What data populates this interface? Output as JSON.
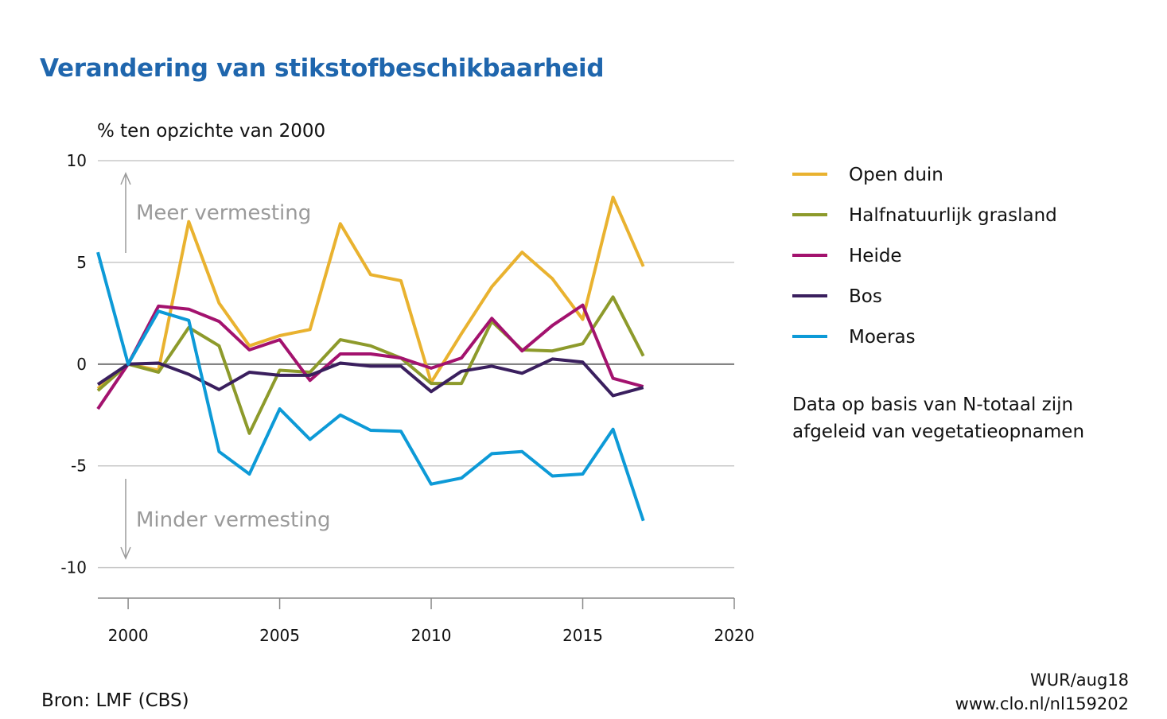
{
  "title": "Verandering van stikstofbeschikbaarheid",
  "source": "Bron: LMF (CBS)",
  "credit": {
    "line1": "WUR/aug18",
    "line2": "www.clo.nl/nl159202"
  },
  "note": {
    "line1": "Data op basis van N-totaal zijn",
    "line2": "afgeleid van vegetatieopnamen"
  },
  "chart_data": {
    "type": "line",
    "title": "Verandering van stikstofbeschikbaarheid",
    "ylabel": "% ten opzichte van 2000",
    "xlabel": "",
    "xlim": [
      1999,
      2020
    ],
    "ylim": [
      -11.5,
      10
    ],
    "yticks": [
      10,
      5,
      0,
      -5,
      -10
    ],
    "ytick_labels": [
      "10",
      "5",
      "0",
      "-5",
      "-10"
    ],
    "xticks": [
      2000,
      2005,
      2010,
      2015,
      2020
    ],
    "xtick_labels": [
      "2000",
      "2005",
      "2010",
      "2015",
      "2020"
    ],
    "grid": true,
    "legend_position": "right",
    "annotations": [
      {
        "text": "Meer vermesting",
        "direction": "up"
      },
      {
        "text": "Minder vermesting",
        "direction": "down"
      }
    ],
    "x": [
      1999,
      2000,
      2001,
      2002,
      2003,
      2004,
      2005,
      2006,
      2007,
      2008,
      2009,
      2010,
      2011,
      2012,
      2013,
      2014,
      2015,
      2016,
      2017
    ],
    "series": [
      {
        "name": "Open duin",
        "color": "#e9b22f",
        "values": [
          -1.2,
          0,
          -0.3,
          7.0,
          3.0,
          0.9,
          1.4,
          1.7,
          6.9,
          4.4,
          4.1,
          -0.9,
          1.5,
          3.8,
          5.5,
          4.2,
          2.2,
          8.2,
          4.8
        ]
      },
      {
        "name": "Halfnatuurlijk grasland",
        "color": "#8d9a2b",
        "values": [
          -1.3,
          0,
          -0.4,
          1.8,
          0.9,
          -3.4,
          -0.3,
          -0.4,
          1.2,
          0.9,
          0.3,
          -0.95,
          -0.95,
          2.1,
          0.7,
          0.65,
          1.0,
          3.3,
          0.4
        ]
      },
      {
        "name": "Heide",
        "color": "#a3126e",
        "values": [
          -2.2,
          0,
          2.85,
          2.7,
          2.1,
          0.7,
          1.2,
          -0.8,
          0.5,
          0.5,
          0.3,
          -0.2,
          0.3,
          2.25,
          0.65,
          1.9,
          2.9,
          -0.7,
          -1.1
        ]
      },
      {
        "name": "Bos",
        "color": "#3a1f5e",
        "values": [
          -1.0,
          0,
          0.05,
          -0.5,
          -1.25,
          -0.4,
          -0.55,
          -0.55,
          0.05,
          -0.1,
          -0.1,
          -1.35,
          -0.35,
          -0.1,
          -0.45,
          0.25,
          0.1,
          -1.55,
          -1.15
        ]
      },
      {
        "name": "Moeras",
        "color": "#0d9ad7",
        "values": [
          5.5,
          0,
          2.6,
          2.15,
          -4.3,
          -5.4,
          -2.2,
          -3.7,
          -2.5,
          -3.25,
          -3.3,
          -5.9,
          -5.6,
          -4.4,
          -4.3,
          -5.5,
          -5.4,
          -3.2,
          -7.7
        ]
      }
    ]
  }
}
